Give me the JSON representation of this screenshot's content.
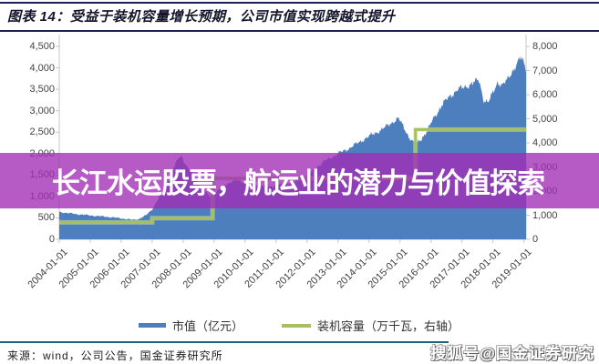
{
  "figure": {
    "title": "图表 14：受益于装机容量增长预期，公司市值实现跨越式提升",
    "source": "来源：wind，公司公告，国金证券研究所",
    "watermark_band_text": "长江水运股票，航运业的潜力与价值探索",
    "watermark_corner_text": "搜狐号@国金证券研究"
  },
  "legend": [
    {
      "label": "市值（亿元）",
      "color": "#4d7ebe"
    },
    {
      "label": "装机容量（万千瓦，右轴）",
      "color": "#a6c060"
    }
  ],
  "colors": {
    "market_cap_area": "#4d7ebe",
    "capacity_line": "#a6c060",
    "watermark_band": "rgba(162,44,182,0.78)",
    "title_rule": "#1a2050",
    "bottom_rule": "#19647a",
    "axis_line": "#c6c6c6"
  },
  "chart_data": {
    "type": "area",
    "title": "受益于装机容量增长预期，公司市值实现跨越式提升",
    "xlabel": "",
    "ylabel_left": "市值（亿元）",
    "ylabel_right": "装机容量（万千瓦，右轴）",
    "grid": false,
    "legend_position": "bottom",
    "x_tick_labels": [
      "2004-01-01",
      "2005-01-01",
      "2006-01-01",
      "2007-01-01",
      "2008-01-01",
      "2009-01-01",
      "2010-01-01",
      "2011-01-01",
      "2012-01-01",
      "2013-01-01",
      "2014-01-01",
      "2015-01-01",
      "2016-01-01",
      "2017-01-01",
      "2018-01-01",
      "2019-01-01"
    ],
    "x_tick_years": [
      2004,
      2005,
      2006,
      2007,
      2008,
      2009,
      2010,
      2011,
      2012,
      2013,
      2014,
      2015,
      2016,
      2017,
      2018,
      2019
    ],
    "x_range": [
      2004,
      2019.07
    ],
    "left_axis": {
      "min": 0,
      "max": 4500,
      "step": 500,
      "tick_labels": [
        "0",
        "500",
        "1,000",
        "1,500",
        "2,000",
        "2,500",
        "3,000",
        "3,500",
        "4,000",
        "4,500"
      ]
    },
    "right_axis": {
      "min": 0,
      "max": 8000,
      "step": 1000,
      "tick_labels": [
        "0",
        "1,000",
        "2,000",
        "3,000",
        "4,000",
        "5,000",
        "6,000",
        "7,000",
        "8,000"
      ]
    },
    "series": [
      {
        "name": "市值（亿元）",
        "type": "area",
        "axis": "left",
        "color": "#4d7ebe",
        "points": [
          [
            2004.0,
            640
          ],
          [
            2004.3,
            610
          ],
          [
            2004.6,
            585
          ],
          [
            2004.9,
            565
          ],
          [
            2005.2,
            545
          ],
          [
            2005.5,
            530
          ],
          [
            2005.8,
            505
          ],
          [
            2006.1,
            480
          ],
          [
            2006.35,
            455
          ],
          [
            2006.55,
            470
          ],
          [
            2006.8,
            560
          ],
          [
            2007.0,
            700
          ],
          [
            2007.2,
            950
          ],
          [
            2007.45,
            1280
          ],
          [
            2007.65,
            1580
          ],
          [
            2007.85,
            1900
          ],
          [
            2007.95,
            1950
          ],
          [
            2008.1,
            1720
          ],
          [
            2008.35,
            1480
          ],
          [
            2008.6,
            1220
          ],
          [
            2008.85,
            1010
          ],
          [
            2009.1,
            1120
          ],
          [
            2009.4,
            1300
          ],
          [
            2009.7,
            1380
          ],
          [
            2010.0,
            1340
          ],
          [
            2010.4,
            1260
          ],
          [
            2010.8,
            1230
          ],
          [
            2011.2,
            1290
          ],
          [
            2011.6,
            1340
          ],
          [
            2012.0,
            1480
          ],
          [
            2012.3,
            1680
          ],
          [
            2012.6,
            1840
          ],
          [
            2013.0,
            2000
          ],
          [
            2013.4,
            2140
          ],
          [
            2013.8,
            2320
          ],
          [
            2014.2,
            2480
          ],
          [
            2014.5,
            2600
          ],
          [
            2014.8,
            2760
          ],
          [
            2014.95,
            2820
          ],
          [
            2015.1,
            2640
          ],
          [
            2015.3,
            2380
          ],
          [
            2015.5,
            2200
          ],
          [
            2015.7,
            2360
          ],
          [
            2015.9,
            2550
          ],
          [
            2016.1,
            2850
          ],
          [
            2016.35,
            3120
          ],
          [
            2016.6,
            3340
          ],
          [
            2016.85,
            3480
          ],
          [
            2017.1,
            3560
          ],
          [
            2017.35,
            3640
          ],
          [
            2017.55,
            3720
          ],
          [
            2017.7,
            3260
          ],
          [
            2017.85,
            3180
          ],
          [
            2018.0,
            3420
          ],
          [
            2018.15,
            3680
          ],
          [
            2018.3,
            3580
          ],
          [
            2018.45,
            3700
          ],
          [
            2018.6,
            3900
          ],
          [
            2018.75,
            4060
          ],
          [
            2018.9,
            4230
          ],
          [
            2019.0,
            4120
          ],
          [
            2019.07,
            3960
          ]
        ]
      },
      {
        "name": "装机容量（万千瓦，右轴）",
        "type": "step-line",
        "axis": "right",
        "color": "#a6c060",
        "points": [
          [
            2004.0,
            700
          ],
          [
            2007.0,
            700
          ],
          [
            2007.0,
            880
          ],
          [
            2008.95,
            880
          ],
          [
            2008.95,
            2530
          ],
          [
            2015.5,
            2530
          ],
          [
            2015.5,
            4550
          ],
          [
            2019.07,
            4550
          ]
        ]
      }
    ]
  }
}
